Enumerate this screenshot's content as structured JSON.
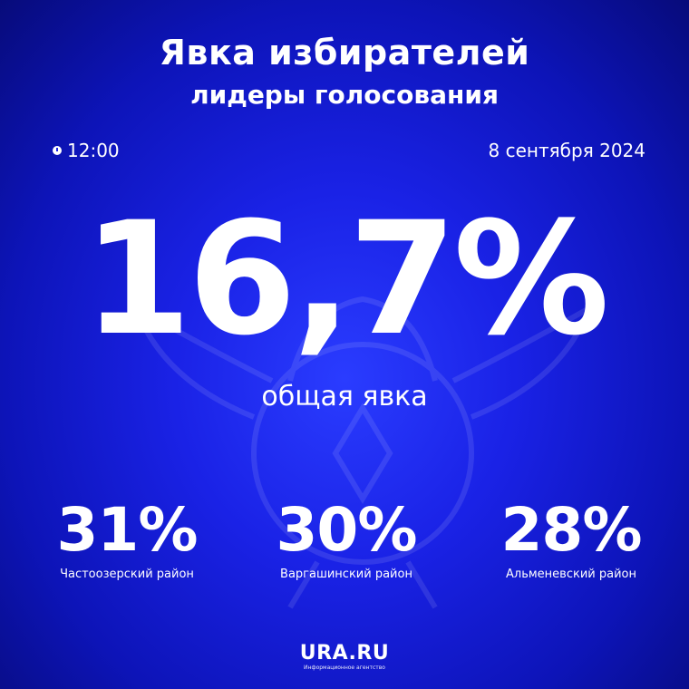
{
  "header": {
    "title": "Явка избирателей",
    "subtitle": "лидеры голосования"
  },
  "meta": {
    "time": "12:00",
    "date": "8 сентября 2024",
    "clock_icon": "clock-icon"
  },
  "turnout": {
    "value": "16,7%",
    "label": "общая явка"
  },
  "leaders": [
    {
      "value": "31%",
      "district": "Частоозерский район"
    },
    {
      "value": "30%",
      "district": "Варгашинский район"
    },
    {
      "value": "28%",
      "district": "Альменевский район"
    }
  ],
  "brand": {
    "name": "URA.RU",
    "tagline": "Информационное агентство"
  },
  "colors": {
    "background": "#1a22e6",
    "text": "#ffffff"
  }
}
